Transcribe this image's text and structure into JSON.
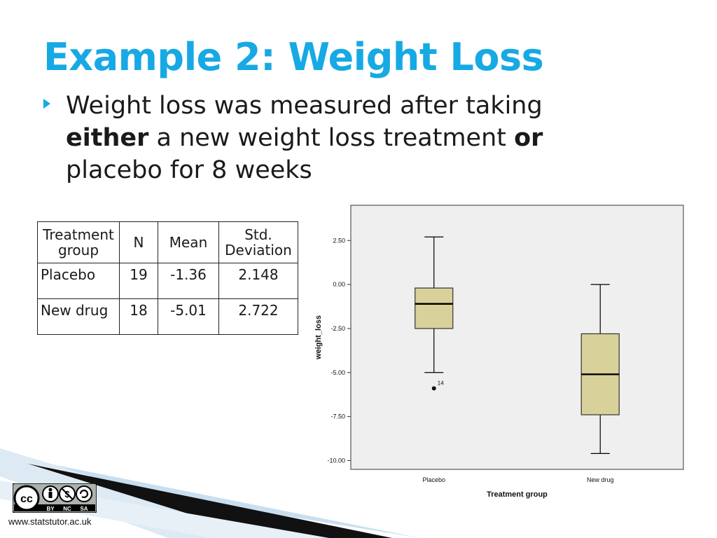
{
  "slide": {
    "title": "Example 2: Weight Loss",
    "bullet": {
      "part1": "Weight loss was measured after taking ",
      "bold1": "either",
      "part2": " a new weight loss treatment ",
      "bold2": "or",
      "part3": " placebo for 8 weeks"
    }
  },
  "table": {
    "headers": [
      "Treatment group",
      "N",
      "Mean",
      "Std. Deviation"
    ],
    "rows": [
      [
        "Placebo",
        "19",
        "-1.36",
        "2.148"
      ],
      [
        "New drug",
        "18",
        "-5.01",
        "2.722"
      ]
    ]
  },
  "chart_data": {
    "type": "boxplot",
    "xlabel": "Treatment group",
    "ylabel": "weight_loss",
    "ylim": [
      -10.5,
      4.5
    ],
    "yticks": [
      2.5,
      0,
      -2.5,
      -5,
      -7.5,
      -10
    ],
    "ytick_labels": [
      "2.50",
      "0.00",
      "-2.50",
      "-5.00",
      "-7.50",
      "-10.00"
    ],
    "categories": [
      "Placebo",
      "New drug"
    ],
    "boxes": [
      {
        "whisker_low": -5.0,
        "q1": -2.5,
        "median": -1.1,
        "q3": -0.2,
        "whisker_high": 2.7,
        "outliers": [
          {
            "value": -5.9,
            "label": "14"
          }
        ]
      },
      {
        "whisker_low": -9.6,
        "q1": -7.4,
        "median": -5.1,
        "q3": -2.8,
        "whisker_high": 0.0,
        "outliers": []
      }
    ],
    "colors": {
      "box_fill": "#d8d29a",
      "plot_bg": "#efefef"
    }
  },
  "colors": {
    "accent": "#17a9e3"
  },
  "license": {
    "badge_items": [
      "BY",
      "NC",
      "SA"
    ]
  },
  "footer": {
    "url": "www.statstutor.ac.uk"
  }
}
